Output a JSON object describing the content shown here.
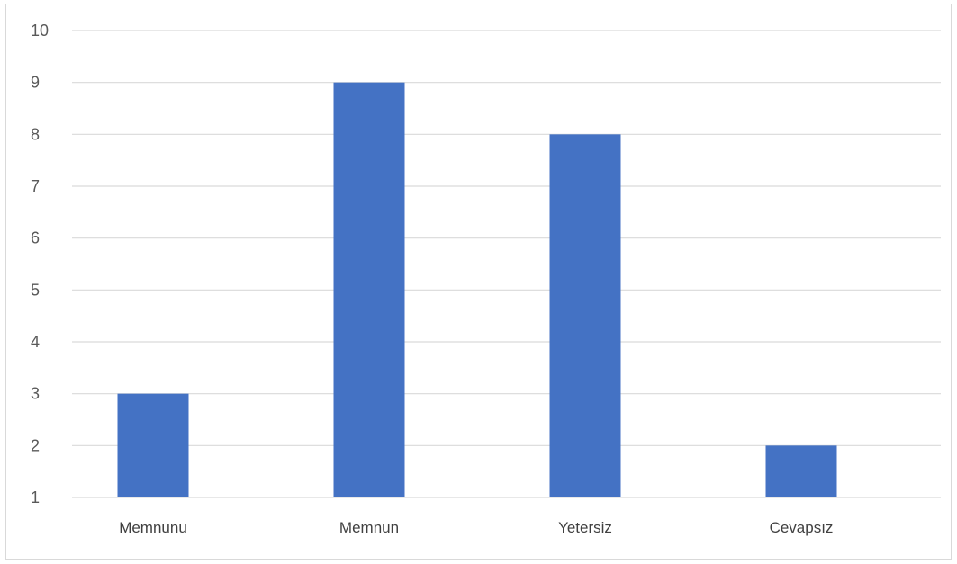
{
  "chart_data": {
    "type": "bar",
    "categories": [
      "Memnunu",
      "Memnun",
      "Yetersiz",
      "Cevapsız"
    ],
    "values": [
      3,
      9,
      8,
      2
    ],
    "ylim": [
      1,
      10
    ],
    "y_ticks": [
      "1",
      "2",
      "3",
      "4",
      "5",
      "6",
      "7",
      "8",
      "9",
      "10"
    ],
    "title": "",
    "xlabel": "",
    "ylabel": "",
    "grid": true,
    "legend": "none",
    "bar_color": "#4472c4",
    "grid_color": "#d9d9d9"
  }
}
